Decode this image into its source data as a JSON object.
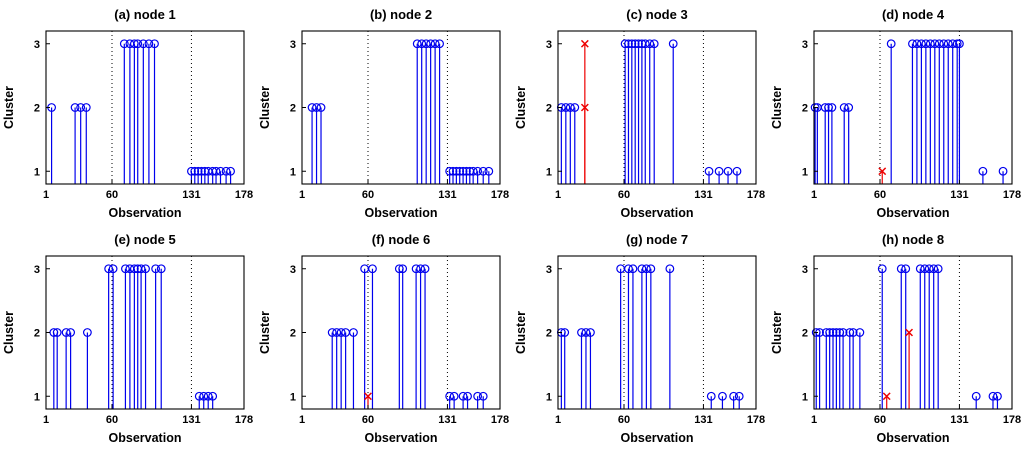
{
  "figure": {
    "description": "Cluster assignment stem plots for 8 sensor nodes",
    "rows": 2,
    "cols": 4
  },
  "colors": {
    "stem_blue": "#0000EE",
    "anomaly_red": "#EE0000",
    "axis_black": "#000000",
    "background": "#FFFFFF"
  },
  "chart_data": [
    {
      "type": "stem",
      "title": "(a) node 1",
      "xlabel": "Observation",
      "ylabel": "Cluster",
      "xlim": [
        1,
        178
      ],
      "ylim": [
        0.8,
        3.2
      ],
      "xticks": [
        1,
        60,
        131,
        178
      ],
      "yticks": [
        1,
        2,
        3
      ],
      "vlines": [
        60,
        131
      ],
      "series": [
        {
          "name": "cluster-assignment",
          "marker": "o",
          "color": "#0000EE",
          "points": [
            [
              6,
              2
            ],
            [
              27,
              2
            ],
            [
              32,
              2
            ],
            [
              37,
              2
            ],
            [
              71,
              3
            ],
            [
              76,
              3
            ],
            [
              80,
              3
            ],
            [
              83,
              3
            ],
            [
              88,
              3
            ],
            [
              93,
              3
            ],
            [
              98,
              3
            ],
            [
              131,
              1
            ],
            [
              134,
              1
            ],
            [
              137,
              1
            ],
            [
              140,
              1
            ],
            [
              143,
              1
            ],
            [
              146,
              1
            ],
            [
              150,
              1
            ],
            [
              153,
              1
            ],
            [
              157,
              1
            ],
            [
              162,
              1
            ],
            [
              166,
              1
            ]
          ]
        },
        {
          "name": "anomaly",
          "marker": "x",
          "color": "#EE0000",
          "points": []
        }
      ]
    },
    {
      "type": "stem",
      "title": "(b) node 2",
      "xlabel": "Observation",
      "ylabel": "Cluster",
      "xlim": [
        1,
        178
      ],
      "ylim": [
        0.8,
        3.2
      ],
      "xticks": [
        1,
        60,
        131,
        178
      ],
      "yticks": [
        1,
        2,
        3
      ],
      "vlines": [
        60,
        131
      ],
      "series": [
        {
          "name": "cluster-assignment",
          "marker": "o",
          "color": "#0000EE",
          "points": [
            [
              10,
              2
            ],
            [
              14,
              2
            ],
            [
              18,
              2
            ],
            [
              104,
              3
            ],
            [
              108,
              3
            ],
            [
              112,
              3
            ],
            [
              116,
              3
            ],
            [
              120,
              3
            ],
            [
              124,
              3
            ],
            [
              133,
              1
            ],
            [
              136,
              1
            ],
            [
              139,
              1
            ],
            [
              142,
              1
            ],
            [
              145,
              1
            ],
            [
              148,
              1
            ],
            [
              151,
              1
            ],
            [
              154,
              1
            ],
            [
              158,
              1
            ],
            [
              163,
              1
            ],
            [
              168,
              1
            ]
          ]
        },
        {
          "name": "anomaly",
          "marker": "x",
          "color": "#EE0000",
          "points": []
        }
      ]
    },
    {
      "type": "stem",
      "title": "(c) node 3",
      "xlabel": "Observation",
      "ylabel": "Cluster",
      "xlim": [
        1,
        178
      ],
      "ylim": [
        0.8,
        3.2
      ],
      "xticks": [
        1,
        60,
        131,
        178
      ],
      "yticks": [
        1,
        2,
        3
      ],
      "vlines": [
        60,
        131
      ],
      "series": [
        {
          "name": "cluster-assignment",
          "marker": "o",
          "color": "#0000EE",
          "points": [
            [
              4,
              2
            ],
            [
              8,
              2
            ],
            [
              12,
              2
            ],
            [
              16,
              2
            ],
            [
              61,
              3
            ],
            [
              64,
              3
            ],
            [
              67,
              3
            ],
            [
              70,
              3
            ],
            [
              73,
              3
            ],
            [
              76,
              3
            ],
            [
              79,
              3
            ],
            [
              83,
              3
            ],
            [
              87,
              3
            ],
            [
              104,
              3
            ],
            [
              136,
              1
            ],
            [
              145,
              1
            ],
            [
              153,
              1
            ],
            [
              161,
              1
            ]
          ]
        },
        {
          "name": "anomaly",
          "marker": "x",
          "color": "#EE0000",
          "points": [
            [
              25,
              2
            ],
            [
              25,
              3
            ]
          ]
        }
      ]
    },
    {
      "type": "stem",
      "title": "(d) node 4",
      "xlabel": "Observation",
      "ylabel": "Cluster",
      "xlim": [
        1,
        178
      ],
      "ylim": [
        0.8,
        3.2
      ],
      "xticks": [
        1,
        60,
        131,
        178
      ],
      "yticks": [
        1,
        2,
        3
      ],
      "vlines": [
        60,
        131
      ],
      "series": [
        {
          "name": "cluster-assignment",
          "marker": "o",
          "color": "#0000EE",
          "points": [
            [
              2,
              2
            ],
            [
              4,
              2
            ],
            [
              11,
              2
            ],
            [
              14,
              2
            ],
            [
              17,
              2
            ],
            [
              28,
              2
            ],
            [
              32,
              2
            ],
            [
              70,
              3
            ],
            [
              89,
              3
            ],
            [
              93,
              3
            ],
            [
              97,
              3
            ],
            [
              101,
              3
            ],
            [
              105,
              3
            ],
            [
              109,
              3
            ],
            [
              113,
              3
            ],
            [
              117,
              3
            ],
            [
              121,
              3
            ],
            [
              125,
              3
            ],
            [
              129,
              3
            ],
            [
              131,
              3
            ],
            [
              152,
              1
            ],
            [
              170,
              1
            ]
          ]
        },
        {
          "name": "anomaly",
          "marker": "x",
          "color": "#EE0000",
          "points": [
            [
              62,
              1
            ]
          ]
        }
      ]
    },
    {
      "type": "stem",
      "title": "(e) node 5",
      "xlabel": "Observation",
      "ylabel": "Cluster",
      "xlim": [
        1,
        178
      ],
      "ylim": [
        0.8,
        3.2
      ],
      "xticks": [
        1,
        60,
        131,
        178
      ],
      "yticks": [
        1,
        2,
        3
      ],
      "vlines": [
        60,
        131
      ],
      "series": [
        {
          "name": "cluster-assignment",
          "marker": "o",
          "color": "#0000EE",
          "points": [
            [
              8,
              2
            ],
            [
              11,
              2
            ],
            [
              19,
              2
            ],
            [
              23,
              2
            ],
            [
              38,
              2
            ],
            [
              57,
              3
            ],
            [
              61,
              3
            ],
            [
              72,
              3
            ],
            [
              76,
              3
            ],
            [
              80,
              3
            ],
            [
              83,
              3
            ],
            [
              86,
              3
            ],
            [
              90,
              3
            ],
            [
              99,
              3
            ],
            [
              104,
              3
            ],
            [
              138,
              1
            ],
            [
              142,
              1
            ],
            [
              146,
              1
            ],
            [
              150,
              1
            ]
          ]
        },
        {
          "name": "anomaly",
          "marker": "x",
          "color": "#EE0000",
          "points": []
        }
      ]
    },
    {
      "type": "stem",
      "title": "(f) node 6",
      "xlabel": "Observation",
      "ylabel": "Cluster",
      "xlim": [
        1,
        178
      ],
      "ylim": [
        0.8,
        3.2
      ],
      "xticks": [
        1,
        60,
        131,
        178
      ],
      "yticks": [
        1,
        2,
        3
      ],
      "vlines": [
        60,
        131
      ],
      "series": [
        {
          "name": "cluster-assignment",
          "marker": "o",
          "color": "#0000EE",
          "points": [
            [
              28,
              2
            ],
            [
              32,
              2
            ],
            [
              36,
              2
            ],
            [
              40,
              2
            ],
            [
              47,
              2
            ],
            [
              57,
              3
            ],
            [
              64,
              3
            ],
            [
              88,
              3
            ],
            [
              91,
              3
            ],
            [
              103,
              3
            ],
            [
              107,
              3
            ],
            [
              111,
              3
            ],
            [
              133,
              1
            ],
            [
              137,
              1
            ],
            [
              145,
              1
            ],
            [
              149,
              1
            ],
            [
              158,
              1
            ],
            [
              163,
              1
            ]
          ]
        },
        {
          "name": "anomaly",
          "marker": "x",
          "color": "#EE0000",
          "points": [
            [
              60,
              1
            ]
          ]
        }
      ]
    },
    {
      "type": "stem",
      "title": "(g) node 7",
      "xlabel": "Observation",
      "ylabel": "Cluster",
      "xlim": [
        1,
        178
      ],
      "ylim": [
        0.8,
        3.2
      ],
      "xticks": [
        1,
        60,
        131,
        178
      ],
      "yticks": [
        1,
        2,
        3
      ],
      "vlines": [
        60,
        131
      ],
      "series": [
        {
          "name": "cluster-assignment",
          "marker": "o",
          "color": "#0000EE",
          "points": [
            [
              4,
              2
            ],
            [
              7,
              2
            ],
            [
              22,
              2
            ],
            [
              26,
              2
            ],
            [
              30,
              2
            ],
            [
              57,
              3
            ],
            [
              64,
              3
            ],
            [
              68,
              3
            ],
            [
              76,
              3
            ],
            [
              80,
              3
            ],
            [
              84,
              3
            ],
            [
              101,
              3
            ],
            [
              138,
              1
            ],
            [
              148,
              1
            ],
            [
              158,
              1
            ],
            [
              163,
              1
            ]
          ]
        },
        {
          "name": "anomaly",
          "marker": "x",
          "color": "#EE0000",
          "points": []
        }
      ]
    },
    {
      "type": "stem",
      "title": "(h) node 8",
      "xlabel": "Observation",
      "ylabel": "Cluster",
      "xlim": [
        1,
        178
      ],
      "ylim": [
        0.8,
        3.2
      ],
      "xticks": [
        1,
        60,
        131,
        178
      ],
      "yticks": [
        1,
        2,
        3
      ],
      "vlines": [
        60,
        131
      ],
      "series": [
        {
          "name": "cluster-assignment",
          "marker": "o",
          "color": "#0000EE",
          "points": [
            [
              3,
              2
            ],
            [
              6,
              2
            ],
            [
              12,
              2
            ],
            [
              15,
              2
            ],
            [
              18,
              2
            ],
            [
              21,
              2
            ],
            [
              24,
              2
            ],
            [
              27,
              2
            ],
            [
              33,
              2
            ],
            [
              36,
              2
            ],
            [
              42,
              2
            ],
            [
              62,
              3
            ],
            [
              79,
              3
            ],
            [
              83,
              3
            ],
            [
              96,
              3
            ],
            [
              100,
              3
            ],
            [
              104,
              3
            ],
            [
              108,
              3
            ],
            [
              112,
              3
            ],
            [
              146,
              1
            ],
            [
              161,
              1
            ],
            [
              165,
              1
            ]
          ]
        },
        {
          "name": "anomaly",
          "marker": "x",
          "color": "#EE0000",
          "points": [
            [
              66,
              1
            ],
            [
              86,
              2
            ]
          ]
        }
      ]
    }
  ]
}
